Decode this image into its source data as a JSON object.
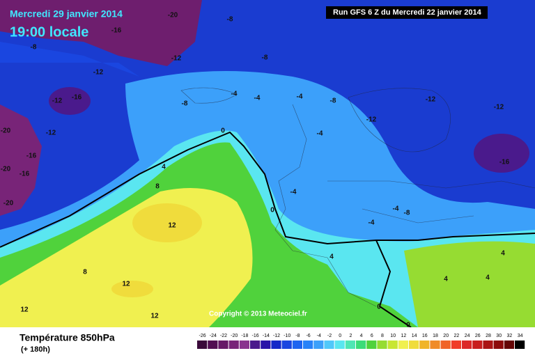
{
  "header": {
    "date": "Mercredi 29 janvier 2014",
    "time": "19:00 locale",
    "run": "Run GFS 6 Z du Mercredi 22 janvier 2014",
    "copyright": "Copyright © 2013 Meteociel.fr"
  },
  "footer": {
    "title": "Température 850hPa",
    "lead": "(+ 180h)"
  },
  "contour_labels": [
    -20,
    -8,
    -16,
    -8,
    -12,
    -8,
    -12,
    -16,
    -12,
    -8,
    -4,
    -4,
    -4,
    -8,
    -12,
    -12,
    -12,
    -12,
    -20,
    0,
    -4,
    -16,
    -16,
    4,
    -20,
    -16,
    8,
    -4,
    -20,
    0,
    -4,
    -8,
    12,
    -4,
    4,
    4,
    8,
    12,
    4,
    4,
    12,
    12,
    0,
    0
  ],
  "scale": {
    "values": [
      -26,
      -24,
      -22,
      -20,
      -18,
      -16,
      -14,
      -12,
      -10,
      -8,
      -6,
      -4,
      -2,
      0,
      2,
      4,
      6,
      8,
      10,
      12,
      14,
      16,
      18,
      20,
      22,
      24,
      26,
      28,
      30,
      32,
      34
    ],
    "colors": [
      "#3a0a3a",
      "#520e52",
      "#661866",
      "#782478",
      "#8a348e",
      "#4a1a8c",
      "#2a14a8",
      "#1428c8",
      "#1a46e0",
      "#1e64f0",
      "#2882f8",
      "#3ca0fa",
      "#50c8fa",
      "#5ae6f0",
      "#50e6b4",
      "#3cdc78",
      "#50d23c",
      "#96dc32",
      "#c8e632",
      "#f0f050",
      "#f0dc3c",
      "#f0b428",
      "#f08c28",
      "#f06428",
      "#f03c28",
      "#dc2828",
      "#c81e1e",
      "#aa1414",
      "#8c0a0a",
      "#640505",
      "#000000"
    ]
  }
}
